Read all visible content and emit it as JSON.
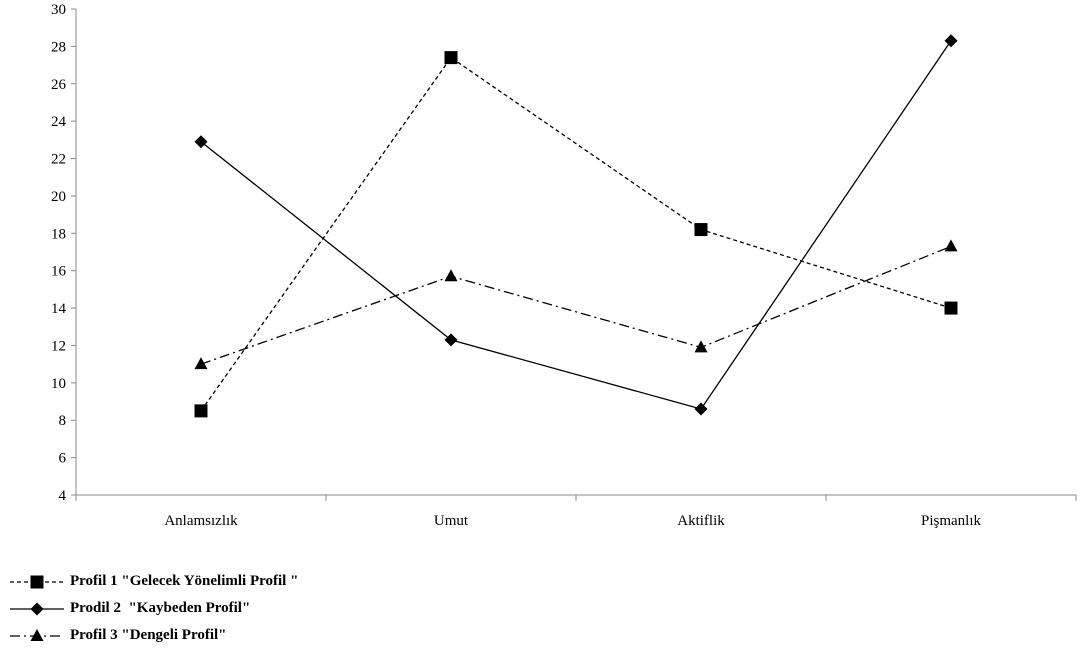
{
  "chart_data": {
    "type": "line",
    "title": "",
    "xlabel": "",
    "ylabel": "",
    "categories": [
      "Anlamsızlık",
      "Umut",
      "Aktiflik",
      "Pişmanlık"
    ],
    "ylim": [
      4,
      30
    ],
    "yticks": [
      4,
      6,
      8,
      10,
      12,
      14,
      16,
      18,
      20,
      22,
      24,
      26,
      28,
      30
    ],
    "grid": false,
    "legend_position": "bottom-left",
    "series": [
      {
        "name": "Profil 1 \"Gelecek Yönelimli Profil \"",
        "values": [
          8.5,
          27.4,
          18.2,
          14.0
        ],
        "marker": "square",
        "line": "dashed",
        "color": "#000000"
      },
      {
        "name": "Prodil 2  \"Kaybeden Profil\"",
        "values": [
          22.9,
          12.3,
          8.6,
          28.3
        ],
        "marker": "diamond",
        "line": "solid",
        "color": "#000000"
      },
      {
        "name": "Profil 3 \"Dengeli Profil\"",
        "values": [
          11.0,
          15.7,
          11.9,
          17.3
        ],
        "marker": "triangle",
        "line": "dashdot",
        "color": "#000000"
      }
    ]
  }
}
